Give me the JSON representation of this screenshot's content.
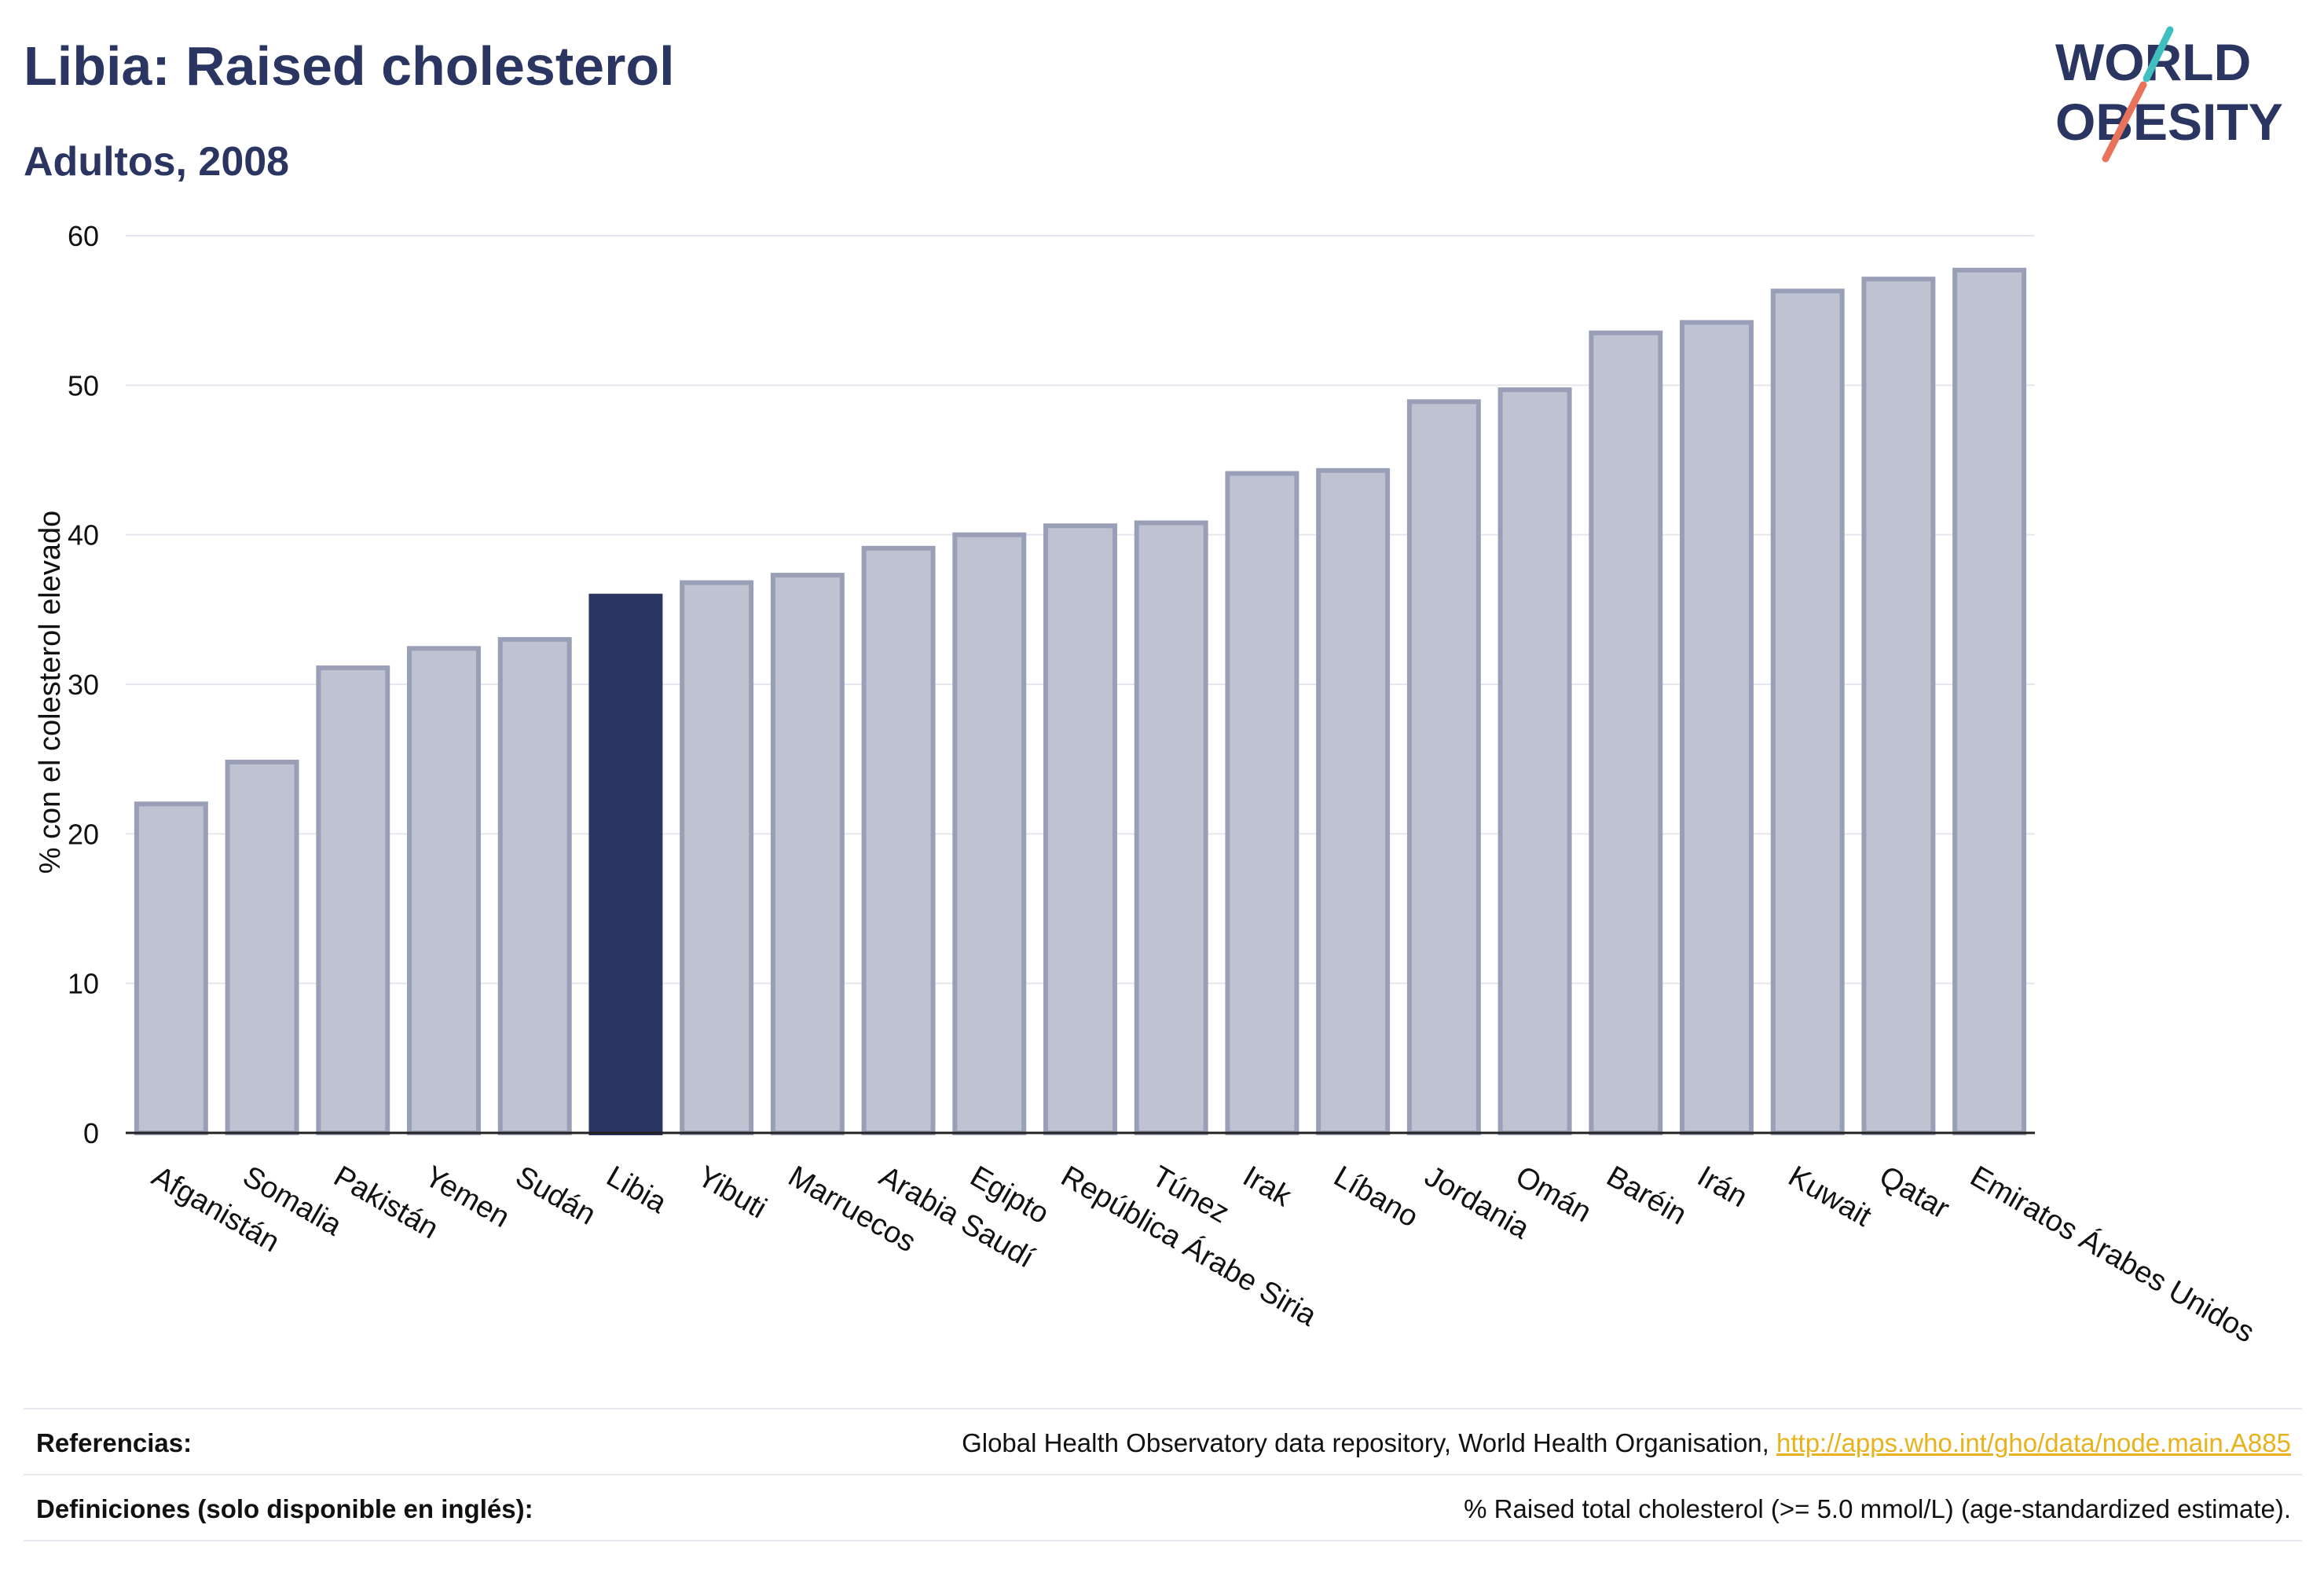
{
  "header": {
    "title": "Libia: Raised cholesterol",
    "subtitle": "Adultos, 2008"
  },
  "logo": {
    "line1": "WORLD",
    "line2": "OBESITY",
    "colors": {
      "text": "#2a3561",
      "slash_teal": "#3fbfbf",
      "slash_coral": "#e8735a"
    }
  },
  "chart_data": {
    "type": "bar",
    "ylabel": "% con el colesterol elevado",
    "xlabel": "",
    "ylim": [
      0,
      60
    ],
    "yticks": [
      0,
      10,
      20,
      30,
      40,
      50,
      60
    ],
    "grid": true,
    "highlight": "Libia",
    "colors": {
      "bar": "#bfc2d1",
      "bar_edge": "#9a9fb8",
      "highlight": "#2a3561"
    },
    "categories": [
      "Afganistán",
      "Somalia",
      "Pakistán",
      "Yemen",
      "Sudán",
      "Libia",
      "Yibuti",
      "Marruecos",
      "Arabia Saudí",
      "Egipto",
      "República Árabe Siria",
      "Túnez",
      "Irak",
      "Líbano",
      "Jordania",
      "Omán",
      "Baréin",
      "Irán",
      "Kuwait",
      "Qatar",
      "Emiratos Árabes Unidos"
    ],
    "values": [
      22.0,
      24.8,
      31.1,
      32.4,
      33.0,
      35.9,
      36.8,
      37.3,
      39.1,
      40.0,
      40.6,
      40.8,
      44.1,
      44.3,
      48.9,
      49.7,
      53.5,
      54.2,
      56.3,
      57.1,
      57.7
    ]
  },
  "footer": {
    "references_label": "Referencias:",
    "references_text": "Global Health Observatory data repository, World Health Organisation, ",
    "references_link": "http://apps.who.int/gho/data/node.main.A885",
    "definitions_label": "Definiciones (solo disponible en inglés):",
    "definitions_text": "% Raised total cholesterol (>= 5.0 mmol/L) (age-standardized estimate)."
  }
}
